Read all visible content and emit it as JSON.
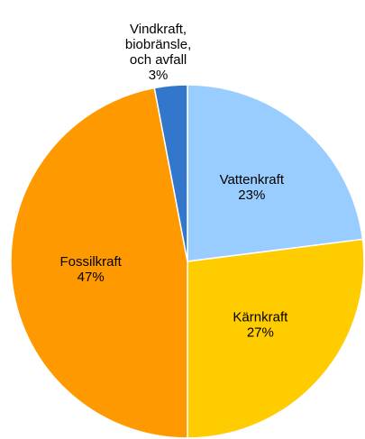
{
  "chart_data": {
    "type": "pie",
    "categories": [
      "Vattenkraft",
      "Kärnkraft",
      "Fossilkraft",
      "Vindkraft,\nbiobränsle,\noch avfall"
    ],
    "values": [
      23,
      27,
      47,
      3
    ],
    "value_labels": [
      "23%",
      "27%",
      "47%",
      "3%"
    ],
    "colors": [
      "#99ccff",
      "#ffcc00",
      "#ff9900",
      "#3377cc"
    ]
  }
}
